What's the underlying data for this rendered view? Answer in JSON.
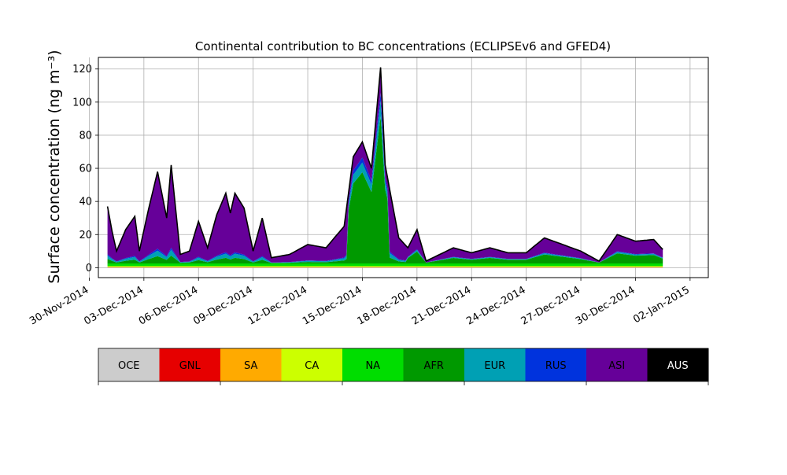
{
  "chart_data": {
    "type": "area",
    "stacked": true,
    "title": "Continental contribution to BC concentrations (ECLIPSEv6 and GFED4)",
    "ylabel": "Surface concentration (ng m⁻³)",
    "xlabel": "",
    "x_start": "2014-12-01",
    "x_end": "2014-12-31",
    "xlim": [
      "2014-11-30T12:00",
      "2015-01-03"
    ],
    "ylim": [
      -6,
      127
    ],
    "yticks": [
      0,
      20,
      40,
      60,
      80,
      100,
      120
    ],
    "xticks": [
      "30-Nov-2014",
      "03-Dec-2014",
      "06-Dec-2014",
      "09-Dec-2014",
      "12-Dec-2014",
      "15-Dec-2014",
      "18-Dec-2014",
      "21-Dec-2014",
      "24-Dec-2014",
      "27-Dec-2014",
      "30-Dec-2014",
      "02-Jan-2015"
    ],
    "xtick_dates": [
      "2014-11-30",
      "2014-12-03",
      "2014-12-06",
      "2014-12-09",
      "2014-12-12",
      "2014-12-15",
      "2014-12-18",
      "2014-12-21",
      "2014-12-24",
      "2014-12-27",
      "2014-12-30",
      "2015-01-02"
    ],
    "grid": true,
    "total_peaks": [
      [
        "2014-12-01T00:00",
        37
      ],
      [
        "2014-12-01T06:00",
        22
      ],
      [
        "2014-12-01T12:00",
        10
      ],
      [
        "2014-12-02T00:00",
        23
      ],
      [
        "2014-12-02T12:00",
        31
      ],
      [
        "2014-12-02T18:00",
        10
      ],
      [
        "2014-12-03T06:00",
        35
      ],
      [
        "2014-12-03T18:00",
        58
      ],
      [
        "2014-12-04T06:00",
        30
      ],
      [
        "2014-12-04T12:00",
        62
      ],
      [
        "2014-12-05T00:00",
        8
      ],
      [
        "2014-12-05T12:00",
        10
      ],
      [
        "2014-12-06T00:00",
        28
      ],
      [
        "2014-12-06T12:00",
        12
      ],
      [
        "2014-12-07T00:00",
        32
      ],
      [
        "2014-12-07T12:00",
        45
      ],
      [
        "2014-12-07T18:00",
        33
      ],
      [
        "2014-12-08T00:00",
        45
      ],
      [
        "2014-12-08T12:00",
        36
      ],
      [
        "2014-12-09T00:00",
        10
      ],
      [
        "2014-12-09T12:00",
        30
      ],
      [
        "2014-12-10T00:00",
        6
      ],
      [
        "2014-12-11T00:00",
        8
      ],
      [
        "2014-12-12T00:00",
        14
      ],
      [
        "2014-12-13T00:00",
        12
      ],
      [
        "2014-12-14T00:00",
        25
      ],
      [
        "2014-12-14T12:00",
        67
      ],
      [
        "2014-12-15T00:00",
        76
      ],
      [
        "2014-12-15T12:00",
        60
      ],
      [
        "2014-12-16T00:00",
        121
      ],
      [
        "2014-12-16T06:00",
        62
      ],
      [
        "2014-12-17T00:00",
        18
      ],
      [
        "2014-12-17T12:00",
        12
      ],
      [
        "2014-12-18T00:00",
        23
      ],
      [
        "2014-12-18T12:00",
        4
      ],
      [
        "2014-12-20T00:00",
        12
      ],
      [
        "2014-12-21T00:00",
        9
      ],
      [
        "2014-12-22T00:00",
        12
      ],
      [
        "2014-12-23T00:00",
        9
      ],
      [
        "2014-12-24T00:00",
        9
      ],
      [
        "2014-12-25T00:00",
        18
      ],
      [
        "2014-12-26T00:00",
        14
      ],
      [
        "2014-12-27T00:00",
        10
      ],
      [
        "2014-12-28T00:00",
        4
      ],
      [
        "2014-12-29T00:00",
        20
      ],
      [
        "2014-12-30T00:00",
        16
      ],
      [
        "2014-12-31T00:00",
        17
      ],
      [
        "2014-12-31T12:00",
        11
      ]
    ],
    "regions": [
      "OCE",
      "GNL",
      "SA",
      "CA",
      "NA",
      "AFR",
      "EUR",
      "RUS",
      "ASI",
      "AUS"
    ],
    "colors": [
      "#cccccc",
      "#e60000",
      "#ffaa00",
      "#ccff00",
      "#00dd00",
      "#009900",
      "#00a0b4",
      "#0033dd",
      "#660099",
      "#000000"
    ]
  },
  "legend": {
    "labels": [
      "OCE",
      "GNL",
      "SA",
      "CA",
      "NA",
      "AFR",
      "EUR",
      "RUS",
      "ASI",
      "AUS"
    ],
    "label_colors": [
      "#000000",
      "#000000",
      "#000000",
      "#000000",
      "#000000",
      "#000000",
      "#000000",
      "#000000",
      "#000000",
      "#ffffff"
    ]
  }
}
